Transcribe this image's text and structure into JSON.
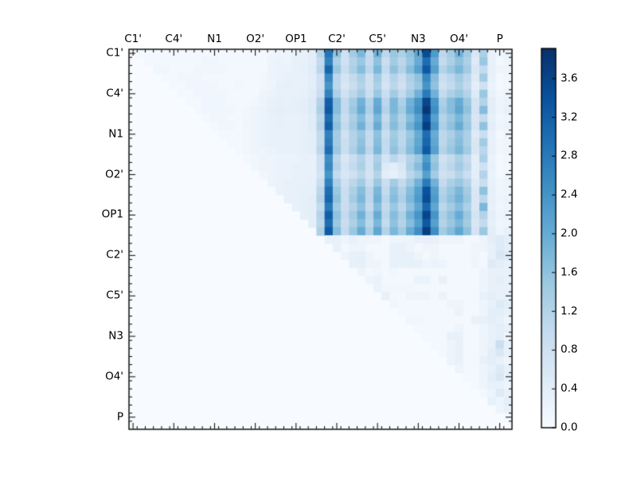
{
  "figure": {
    "background": "#ffffff",
    "description": "atom-pair heatmap with Blues colorbar"
  },
  "chart_data": {
    "type": "heatmap",
    "title": "",
    "xlabel": "",
    "ylabel": "",
    "n": 47,
    "colormap": "Blues",
    "vmin": 0,
    "vmax": 3.91,
    "grid": false,
    "legend_position": "colorbar-right",
    "x_tick_labels": [
      "C1'",
      "C4'",
      "N1",
      "O2'",
      "OP1",
      "C2'",
      "C5'",
      "N3",
      "O4'",
      "P"
    ],
    "y_tick_labels": [
      "C1'",
      "C4'",
      "N1",
      "O2'",
      "OP1",
      "C2'",
      "C5'",
      "N3",
      "O4'",
      "P"
    ],
    "major_tick_cells": [
      0,
      5,
      10,
      15,
      20,
      25,
      30,
      35,
      40,
      45
    ],
    "colorbar_tick_values": [
      0.0,
      0.4,
      0.8,
      1.2,
      1.6,
      2.0,
      2.4,
      2.8,
      3.2,
      3.6
    ],
    "colorbar_tick_labels": [
      "0.0",
      "0.4",
      "0.8",
      "1.2",
      "1.6",
      "2.0",
      "2.4",
      "2.8",
      "3.2",
      "3.6"
    ],
    "colormap_stops": [
      [
        247,
        251,
        255
      ],
      [
        222,
        235,
        247
      ],
      [
        198,
        219,
        239
      ],
      [
        158,
        202,
        225
      ],
      [
        107,
        174,
        214
      ],
      [
        66,
        146,
        198
      ],
      [
        33,
        113,
        181
      ],
      [
        8,
        81,
        156
      ],
      [
        8,
        48,
        107
      ]
    ],
    "matrix_rows": [
      "0 .1 .1 .1 .1 .1 .1 .1 .1 .1 .1 .1 .1 .1 .1 .1 .1 .15 .2 .2 .25 .3 .4 1.2 2.9 1.6 .8 1.4 1.8 1 1.9 1.1 1.5 1.3 1.6 2.1 3.5 2.3 1.1 1.4 1.9 1.4 .6 1.3 .3 .2 .2",
      "0 0 .1 .1 .1 .1 .1 .1 .1 .15 .15 .1 .1 .1 .1 .1 .1 .2 .25 .2 .3 .3 .4 1 2.7 1.3 .8 1.2 1.5 1 1.6 .9 1.4 1.1 1.5 2 3 2 1 1.3 1.6 1.3 .5 1.5 .3 .1 .2",
      "0 0 0 .15 .15 .1 .1 .1 .15 .15 .15 .15 .1 .1 .1 .1 .1 .2 .25 .25 .3 .35 .45 1.1 3.1 1.5 .9 1.3 1.7 1.1 1.8 1 1.6 1.2 1.7 2.2 3.3 2.2 1.2 1.5 1.8 1.4 .6 1 .35 .2 .2",
      "0 0 0 0 .1 .1 .15 .15 .15 .1 .1 .1 .1 .1 .1 .1 .15 .2 .25 .3 .3 .3 .4 .8 2.6 1.1 .7 1 1.3 .8 1.4 .8 1.2 .9 1.3 1.6 2.6 1.7 .9 1.1 1.4 1.1 .5 1.4 .3 .1 .15",
      "0 0 0 0 0 .1 .1 .15 .15 .15 .15 .1 .1 .15 .1 .1 .15 .2 .3 .35 .3 .3 .4 .8 2.4 1.1 .6 .9 1.2 .8 1.3 .7 1.1 .8 1.2 1.5 2.4 1.6 .8 1 1.3 1 .4 .8 .25 .1 .15",
      "0 0 0 0 0 0 .1 .1 .15 .15 .15 .15 .1 .1 .1 .1 .2 .25 .3 .3 .3 .35 .45 .9 2.7 1.3 .8 1.1 1.4 .9 1.5 .9 1.4 1 1.4 1.9 2.8 1.9 1 1.3 1.5 1.2 .5 1.5 .3 .15 .2",
      "0 0 0 0 0 0 0 .1 .1 .15 .15 .15 .1 .1 .1 .15 .2 .3 .35 .3 .35 .4 .5 1.2 3.2 1.7 1 1.4 1.9 1.2 2 1.1 1.8 1.3 1.9 2.4 3.6 2.4 1.3 1.7 2 1.5 .7 1.2 .4 .2 .25",
      "0 0 0 0 0 0 0 0 .1 .15 .15 .15 .15 .1 .15 .2 .25 .35 .4 .35 .35 .4 .5 1.3 3.3 1.7 1 1.5 2 1.3 2.1 1.2 1.8 1.4 2 2.5 3.8 2.5 1.4 1.7 2.1 1.6 .7 1.7 .4 .2 .3",
      "0 0 0 0 0 0 0 0 0 .1 .15 .15 .1 .1 .15 .2 .25 .3 .35 .3 .3 .35 .45 1.1 3 1.5 .9 1.3 1.7 1.1 1.8 1 1.6 1.2 1.7 2.2 3.4 2.2 1.2 1.5 1.8 1.4 .6 1 .35 .15 .2",
      "0 0 0 0 0 0 0 0 0 0 .1 .15 .15 .1 .15 .2 .25 .3 .35 .3 .3 .35 .45 1.2 3.2 1.6 1 1.4 1.9 1.2 2 1.1 1.7 1.3 1.9 2.4 3.7 2.4 1.3 1.6 2 1.5 .7 1.6 .4 .2 .25",
      "0 0 0 0 0 0 0 0 0 0 0 .1 .1 .1 .15 .2 .25 .3 .3 .3 .3 .35 .4 1 2.7 1.4 .8 1.2 1.5 1 1.6 .9 1.4 1.1 1.5 2 3 2 1.1 1.3 1.6 1.3 .5 .9 .3 .1 .2",
      "0 0 0 0 0 0 0 0 0 0 0 0 .1 .1 .15 .2 .25 .3 .3 .3 .3 .35 .4 1 2.8 1.4 .9 1.2 1.6 1 1.7 1 1.5 1.1 1.6 2.1 3.1 2.1 1.1 1.4 1.7 1.3 .6 1.4 .3 .15 .2",
      "0 0 0 0 0 0 0 0 0 0 0 0 0 .1 .15 .2 .2 .25 .3 .3 .3 .35 .4 1.1 3 1.5 .9 1.3 1.7 1.1 1.8 1 1.6 1.2 1.7 2.2 3.3 2.2 1.2 1.5 1.8 1.4 .6 1.1 .35 .15 .2",
      "0 0 0 0 0 0 0 0 0 0 0 0 0 0 .1 .15 .2 .2 .25 .25 .25 .3 .3 .8 2.5 1.1 .6 .9 1.2 .8 1.3 .7 1.1 .8 1.2 1.5 2.3 1.5 .8 1 1.3 1 .4 1.3 .25 .1 .15",
      "0 0 0 0 0 0 0 0 0 0 0 0 0 0 0 .15 .2 .2 .25 .25 .3 .3 .3 .8 2.6 1.2 .7 1 1.3 .8 1.4 .5 .4 .6 1.3 1.7 2.5 1.6 .9 1.1 1.4 1.1 .4 .8 .3 .1 .15",
      "0 0 0 0 0 0 0 0 0 0 0 0 0 0 0 0 .15 .2 .25 .25 .3 .3 .3 .7 2.4 1 .6 .8 1.1 .7 1.2 .4 .3 .5 1.1 1.4 2.2 1.4 .8 .9 1.2 .9 .4 1.2 .25 .1 .15",
      "0 0 0 0 0 0 0 0 0 0 0 0 0 0 0 0 0 .2 .25 .3 .3 .3 .35 .9 2.7 1.3 .8 1.1 1.4 .9 1.5 .9 1.4 1 1.4 1.9 2.8 1.9 1 1.3 1.5 1.2 .5 .9 .3 .15 .2",
      "0 0 0 0 0 0 0 0 0 0 0 0 0 0 0 0 0 0 .25 .3 .3 .35 .35 1.1 3 1.5 .9 1.3 1.7 1.1 1.8 1 1.6 1.2 1.7 2.2 3.4 2.2 1.2 1.5 1.8 1.4 .6 1.6 .35 .15 .2",
      "0 0 0 0 0 0 0 0 0 0 0 0 0 0 0 0 0 0 0 .3 .3 .35 .4 1.2 3.1 1.6 .9 1.4 1.8 1.1 1.9 1.1 1.7 1.3 1.8 2.3 3.5 2.3 1.3 1.6 1.9 1.5 .6 1.1 .35 .2 .25",
      "0 0 0 0 0 0 0 0 0 0 0 0 0 0 0 0 0 0 0 0 .3 .35 .4 1 2.8 1.4 .9 1.2 1.6 1 1.7 1 1.5 1.1 1.6 2.1 3.1 2.1 1.1 1.4 1.7 1.3 .6 1.8 .3 .15 .2",
      "0 0 0 0 0 0 0 0 0 0 0 0 0 0 0 0 0 0 0 0 0 .35 .4 1.2 3.2 1.6 1 1.4 1.9 1.2 2 1.1 1.7 1.3 1.9 2.4 3.6 2.4 1.3 1.6 2 1.5 .7 1.2 .4 .2 .25",
      "0 0 0 0 0 0 0 0 0 0 0 0 0 0 0 0 0 0 0 0 0 0 .4 1.1 3 1.5 .9 1.3 1.7 1.1 1.8 1 1.6 1.2 1.7 2.2 3.3 2.2 1.2 1.5 1.8 1.4 .6 1 .35 .15 .2",
      "0 0 0 0 0 0 0 0 0 0 0 0 0 0 0 0 0 0 0 0 0 0 0 1.3 3.3 1.7 1 1.5 2 1.3 2.1 1.2 1.8 1.4 2 2.5 3.7 2.5 1.4 1.7 2.1 1.6 .7 1.5 .4 .2 .3",
      "0 0 0 0 0 0 0 0 0 0 0 0 0 0 0 0 0 0 0 0 0 0 0 0 .3 .3 .2 .3 .2 .2 .2 .1 .2 .2 .2 .3 .3 .3 .2 .2 .2 .1 .1 .2 .4 .5 .4",
      "0 0 0 0 0 0 0 0 0 0 0 0 0 0 0 0 0 0 0 0 0 0 0 0 0 .3 .1 .2 .2 .1 .1 .1 .3 .3 .2 .1 .2 .2 .1 .1 .1 .1 .2 .2 .3 .5 .4",
      "0 0 0 0 0 0 0 0 0 0 0 0 0 0 0 0 0 0 0 0 0 0 0 0 0 0 .2 .3 .35 .2 .1 .1 .3 .3 .3 .2 .1 .2 .1 .1 .1 .1 .2 .1 .3 .6 .5",
      "0 0 0 0 0 0 0 0 0 0 0 0 0 0 0 0 0 0 0 0 0 0 0 0 0 0 0 .3 .35 .2 .2 .1 .3 .3 .35 .3 .2 .25 .2 .1 .1 .1 .2 .1 .5 .4 .3",
      "0 0 0 0 0 0 0 0 0 0 0 0 0 0 0 0 0 0 0 0 0 0 0 0 0 0 0 0 .2 .1 .15 .1 .15 .1 .1 .1 .1 .1 .1 .1 .1 .1 .1 .2 .3 .3 .3",
      "0 0 0 0 0 0 0 0 0 0 0 0 0 0 0 0 0 0 0 0 0 0 0 0 0 0 0 0 0 .2 .25 .1 .1 .1 .1 .25 .25 .1 .3 .1 .1 .1 .1 .2 .3 .4 .3",
      "0 0 0 0 0 0 0 0 0 0 0 0 0 0 0 0 0 0 0 0 0 0 0 0 0 0 0 0 0 0 .25 .15 .15 .15 .15 .1 .1 .1 .1 .1 .1 .1 .1 .2 .3 .3 .3",
      "0 0 0 0 0 0 0 0 0 0 0 0 0 0 0 0 0 0 0 0 0 0 0 0 0 0 0 0 0 0 0 .3 .1 .1 .2 .2 .2 .1 .25 .1 .1 .1 .1 .3 .4 .3 .3",
      "0 0 0 0 0 0 0 0 0 0 0 0 0 0 0 0 0 0 0 0 0 0 0 0 0 0 0 0 0 0 0 0 .15 .1 .1 .1 .1 .1 .1 .2 .2 .1 .1 .2 .3 .5 .4",
      "0 0 0 0 0 0 0 0 0 0 0 0 0 0 0 0 0 0 0 0 0 0 0 0 0 0 0 0 0 0 0 0 0 .1 .1 .1 .1 .1 .1 .1 .25 .1 .1 .2 .4 .4 .3",
      "0 0 0 0 0 0 0 0 0 0 0 0 0 0 0 0 0 0 0 0 0 0 0 0 0 0 0 0 0 0 0 0 0 0 .15 .15 .1 .1 .1 .1 .1 .1 .3 .3 .4 .3 .2",
      "0 0 0 0 0 0 0 0 0 0 0 0 0 0 0 0 0 0 0 0 0 0 0 0 0 0 0 0 0 0 0 0 0 0 0 .1 .1 .1 .1 .1 .2 .1 .1 .2 .3 .4 .3",
      "0 0 0 0 0 0 0 0 0 0 0 0 0 0 0 0 0 0 0 0 0 0 0 0 0 0 0 0 0 0 0 0 0 0 0 0 .1 .1 .1 .3 .3 .1 .1 .2 .3 .4 .2",
      "0 0 0 0 0 0 0 0 0 0 0 0 0 0 0 0 0 0 0 0 0 0 0 0 0 0 0 0 0 0 0 0 0 0 0 0 0 .1 .1 .2 .3 .1 .1 .2 .3 .9 .3",
      "0 0 0 0 0 0 0 0 0 0 0 0 0 0 0 0 0 0 0 0 0 0 0 0 0 0 0 0 0 0 0 0 0 0 0 0 0 0 .1 .2 .3 .1 .1 .2 .4 .6 .3",
      "0 0 0 0 0 0 0 0 0 0 0 0 0 0 0 0 0 0 0 0 0 0 0 0 0 0 0 0 0 0 0 0 0 0 0 0 0 0 0 .2 .3 .1 .1 .3 .4 .3 .2",
      "0 0 0 0 0 0 0 0 0 0 0 0 0 0 0 0 0 0 0 0 0 0 0 0 0 0 0 0 0 0 0 0 0 0 0 0 0 0 0 0 .2 .1 .1 .2 .3 .5 .3",
      "0 0 0 0 0 0 0 0 0 0 0 0 0 0 0 0 0 0 0 0 0 0 0 0 0 0 0 0 0 0 0 0 0 0 0 0 0 0 0 0 0 .1 .1 .2 .4 .6 .3",
      "0 0 0 0 0 0 0 0 0 0 0 0 0 0 0 0 0 0 0 0 0 0 0 0 0 0 0 0 0 0 0 0 0 0 0 0 0 0 0 0 0 0 .1 .2 .3 .3 .2",
      "0 0 0 0 0 0 0 0 0 0 0 0 0 0 0 0 0 0 0 0 0 0 0 0 0 0 0 0 0 0 0 0 0 0 0 0 0 0 0 0 0 0 0 .1 .2 .5 .3",
      "0 0 0 0 0 0 0 0 0 0 0 0 0 0 0 0 0 0 0 0 0 0 0 0 0 0 0 0 0 0 0 0 0 0 0 0 0 0 0 0 0 0 0 0 .3 .2 .4",
      "0 0 0 0 0 0 0 0 0 0 0 0 0 0 0 0 0 0 0 0 0 0 0 0 0 0 0 0 0 0 0 0 0 0 0 0 0 0 0 0 0 0 0 0 0 .2 .3",
      "0 0 0 0 0 0 0 0 0 0 0 0 0 0 0 0 0 0 0 0 0 0 0 0 0 0 0 0 0 0 0 0 0 0 0 0 0 0 0 0 0 0 0 0 0 0 .1",
      "0 0 0 0 0 0 0 0 0 0 0 0 0 0 0 0 0 0 0 0 0 0 0 0 0 0 0 0 0 0 0 0 0 0 0 0 0 0 0 0 0 0 0 0 0 0 0"
    ]
  }
}
